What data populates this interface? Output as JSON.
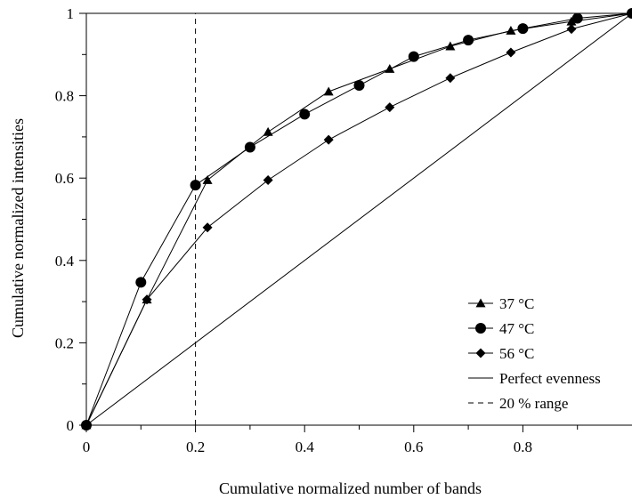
{
  "chart_data": {
    "type": "line",
    "xlabel": "Cumulative normalized number of bands",
    "ylabel": "Cumulative normalized intensities",
    "xlim": [
      0,
      1
    ],
    "ylim": [
      0,
      1
    ],
    "x_ticks": [
      0,
      0.2,
      0.4,
      0.6,
      0.8
    ],
    "x_tick_labels": [
      "0",
      "0.2",
      "0.4",
      "0.6",
      "0.8"
    ],
    "y_ticks": [
      0,
      0.2,
      0.4,
      0.6,
      0.8,
      1
    ],
    "y_tick_labels": [
      "0",
      "0.2",
      "0.4",
      "0.6",
      "0.8",
      "1"
    ],
    "grid": false,
    "legend_position": "bottom-right",
    "series": [
      {
        "name": "37 °C",
        "marker": "triangle",
        "x": [
          0,
          0.111,
          0.222,
          0.333,
          0.444,
          0.556,
          0.667,
          0.778,
          0.889,
          1.0
        ],
        "y": [
          0,
          0.305,
          0.595,
          0.712,
          0.81,
          0.865,
          0.92,
          0.958,
          0.98,
          1.0
        ]
      },
      {
        "name": "47 °C",
        "marker": "circle",
        "x": [
          0,
          0.1,
          0.2,
          0.3,
          0.4,
          0.5,
          0.6,
          0.7,
          0.8,
          0.9,
          1.0
        ],
        "y": [
          0,
          0.347,
          0.583,
          0.675,
          0.755,
          0.825,
          0.895,
          0.935,
          0.963,
          0.988,
          1.0
        ]
      },
      {
        "name": "56 °C",
        "marker": "diamond",
        "x": [
          0,
          0.111,
          0.222,
          0.333,
          0.444,
          0.556,
          0.667,
          0.778,
          0.889,
          1.0
        ],
        "y": [
          0,
          0.305,
          0.48,
          0.595,
          0.693,
          0.772,
          0.843,
          0.905,
          0.962,
          1.0
        ]
      },
      {
        "name": "Perfect evenness",
        "marker": "none",
        "style": "solid",
        "x": [
          0,
          1
        ],
        "y": [
          0,
          1
        ]
      },
      {
        "name": "20 % range",
        "marker": "none",
        "style": "dashed",
        "x": [
          0.2,
          0.2
        ],
        "y": [
          0,
          1
        ]
      }
    ]
  }
}
